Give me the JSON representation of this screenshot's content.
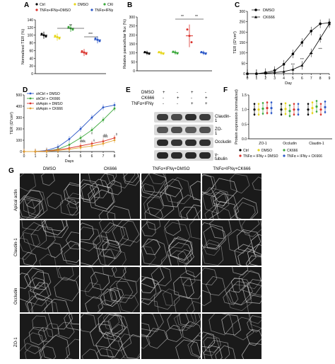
{
  "panels": {
    "A": {
      "label": "A",
      "ylabel": "Normalized TER (%)",
      "yticks": [
        "0",
        "20",
        "40",
        "60",
        "80",
        "100",
        "120",
        "140"
      ],
      "legend": [
        "Ctrl",
        "DMSO",
        "CK666",
        "TNFα+IFNγ+DMSO",
        "TNFα+IFNγ+CK666"
      ],
      "sig": [
        "**",
        "***"
      ]
    },
    "B": {
      "label": "B",
      "ylabel": "Relative paracellular flux (%)",
      "yticks": [
        "0",
        "50",
        "100",
        "150",
        "200",
        "250",
        "300"
      ],
      "sig": [
        "**",
        "**"
      ]
    },
    "C": {
      "label": "C",
      "ylabel": "TER (Ω*cm²)",
      "xlabel": "Day",
      "yticks": [
        "0",
        "50",
        "100",
        "150",
        "200",
        "250",
        "300"
      ],
      "xticks": [
        "0",
        "1",
        "2",
        "3",
        "4",
        "5",
        "6",
        "7",
        "8",
        "9"
      ],
      "legend": [
        "DMSO",
        "CK666"
      ],
      "sig": [
        "***",
        "***",
        "***",
        "***"
      ]
    },
    "D": {
      "label": "D",
      "ylabel": "TER (Ω*cm²)",
      "xlabel": "Days",
      "yticks": [
        "0",
        "100",
        "200",
        "300",
        "400",
        "500"
      ],
      "xticks": [
        "0",
        "1",
        "2",
        "3",
        "4",
        "5",
        "6",
        "7",
        "8"
      ],
      "legend": [
        "shCtrl + DMSO",
        "shCtrl + CK666",
        "shArpin + DMSO",
        "shArpin + CK666"
      ],
      "sig": [
        "$",
        "$$",
        "$$$",
        "&",
        "&&",
        "&&&",
        "#"
      ]
    },
    "E": {
      "label": "E",
      "rows": [
        "DMSO",
        "CK666",
        "TNFα+IFNγ"
      ],
      "signs": [
        [
          "+",
          "-",
          "+",
          "-"
        ],
        [
          "-",
          "+",
          "-",
          "+"
        ],
        [
          "-",
          "-",
          "+",
          "+"
        ]
      ],
      "bands": [
        "Claudin-1",
        "ZO-1",
        "Occludin",
        "γ-tubulin"
      ]
    },
    "F": {
      "label": "F",
      "ylabel": "Protein expression (normalized)",
      "yticks": [
        "0.0",
        "0.5",
        "1.0",
        "1.5"
      ],
      "groups": [
        "ZO-1",
        "Occludin",
        "Claudin-1"
      ],
      "legend": [
        "Ctrl",
        "DMSO",
        "CK666",
        "TNFα + IFNγ + DMSO",
        "TNFα + IFNγ + CK666"
      ]
    },
    "G": {
      "label": "G",
      "columns": [
        "DMSO",
        "CK666",
        "TNFα+IFNγ+DMSO",
        "TNFα+IFNγ+CK666"
      ],
      "rows": [
        "Apical actin",
        "Claudin-1",
        "Occludin",
        "ZO-1"
      ]
    }
  },
  "colors": {
    "ctrl": "#000000",
    "dmso": "#e6d619",
    "ck666": "#3aa83a",
    "tnf_dmso": "#d9312b",
    "tnf_ck666": "#2b57c7",
    "shArpin_ck": "#e3a232"
  },
  "chart_data": [
    {
      "type": "scatter",
      "panel": "A",
      "ylabel": "Normalized TER (%)",
      "ylim": [
        0,
        140
      ],
      "categories": [
        "Ctrl",
        "DMSO",
        "CK666",
        "TNFα+IFNγ+DMSO",
        "TNFα+IFNγ+CK666"
      ],
      "values": [
        100,
        95,
        118,
        55,
        88
      ]
    },
    {
      "type": "scatter",
      "panel": "B",
      "ylabel": "Relative paracellular flux (%)",
      "ylim": [
        0,
        300
      ],
      "categories": [
        "Ctrl",
        "DMSO",
        "CK666",
        "TNFα+IFNγ+DMSO",
        "TNFα+IFNγ+CK666"
      ],
      "values": [
        100,
        100,
        102,
        195,
        100
      ]
    },
    {
      "type": "line",
      "panel": "C",
      "xlabel": "Day",
      "ylabel": "TER (Ω*cm²)",
      "ylim": [
        0,
        300
      ],
      "xlim": [
        0,
        9
      ],
      "x": [
        0,
        1,
        2,
        3,
        4,
        5,
        6,
        7,
        8,
        9
      ],
      "series": [
        {
          "name": "DMSO",
          "values": [
            0,
            0,
            5,
            15,
            45,
            95,
            150,
            205,
            240,
            245
          ]
        },
        {
          "name": "CK666",
          "values": [
            0,
            0,
            2,
            5,
            10,
            20,
            40,
            100,
            170,
            240
          ]
        }
      ]
    },
    {
      "type": "line",
      "panel": "D",
      "xlabel": "Days",
      "ylabel": "TER (Ω*cm²)",
      "ylim": [
        0,
        500
      ],
      "xlim": [
        0,
        8
      ],
      "x": [
        0,
        1,
        2,
        3,
        4,
        5,
        6,
        7,
        8
      ],
      "series": [
        {
          "name": "shCtrl + DMSO",
          "values": [
            0,
            0,
            10,
            40,
            110,
            200,
            300,
            390,
            410
          ]
        },
        {
          "name": "shCtrl + CK666",
          "values": [
            0,
            0,
            5,
            20,
            60,
            120,
            190,
            280,
            380
          ]
        },
        {
          "name": "shArpin + DMSO",
          "values": [
            0,
            0,
            5,
            15,
            30,
            50,
            70,
            90,
            120
          ]
        },
        {
          "name": "shArpin + CK666",
          "values": [
            0,
            0,
            3,
            10,
            20,
            35,
            50,
            70,
            100
          ]
        }
      ]
    },
    {
      "type": "scatter",
      "panel": "F",
      "ylabel": "Protein expression (normalized)",
      "ylim": [
        0,
        1.5
      ],
      "categories": [
        "ZO-1",
        "Occludin",
        "Claudin-1"
      ],
      "series": [
        {
          "name": "Ctrl",
          "values": [
            1.0,
            1.0,
            1.0
          ]
        },
        {
          "name": "DMSO",
          "values": [
            1.0,
            1.02,
            1.05
          ]
        },
        {
          "name": "CK666",
          "values": [
            1.03,
            0.95,
            1.1
          ]
        },
        {
          "name": "TNFα + IFNγ + DMSO",
          "values": [
            1.05,
            1.0,
            1.0
          ]
        },
        {
          "name": "TNFα + IFNγ + CK666",
          "values": [
            1.05,
            1.0,
            1.08
          ]
        }
      ]
    }
  ]
}
